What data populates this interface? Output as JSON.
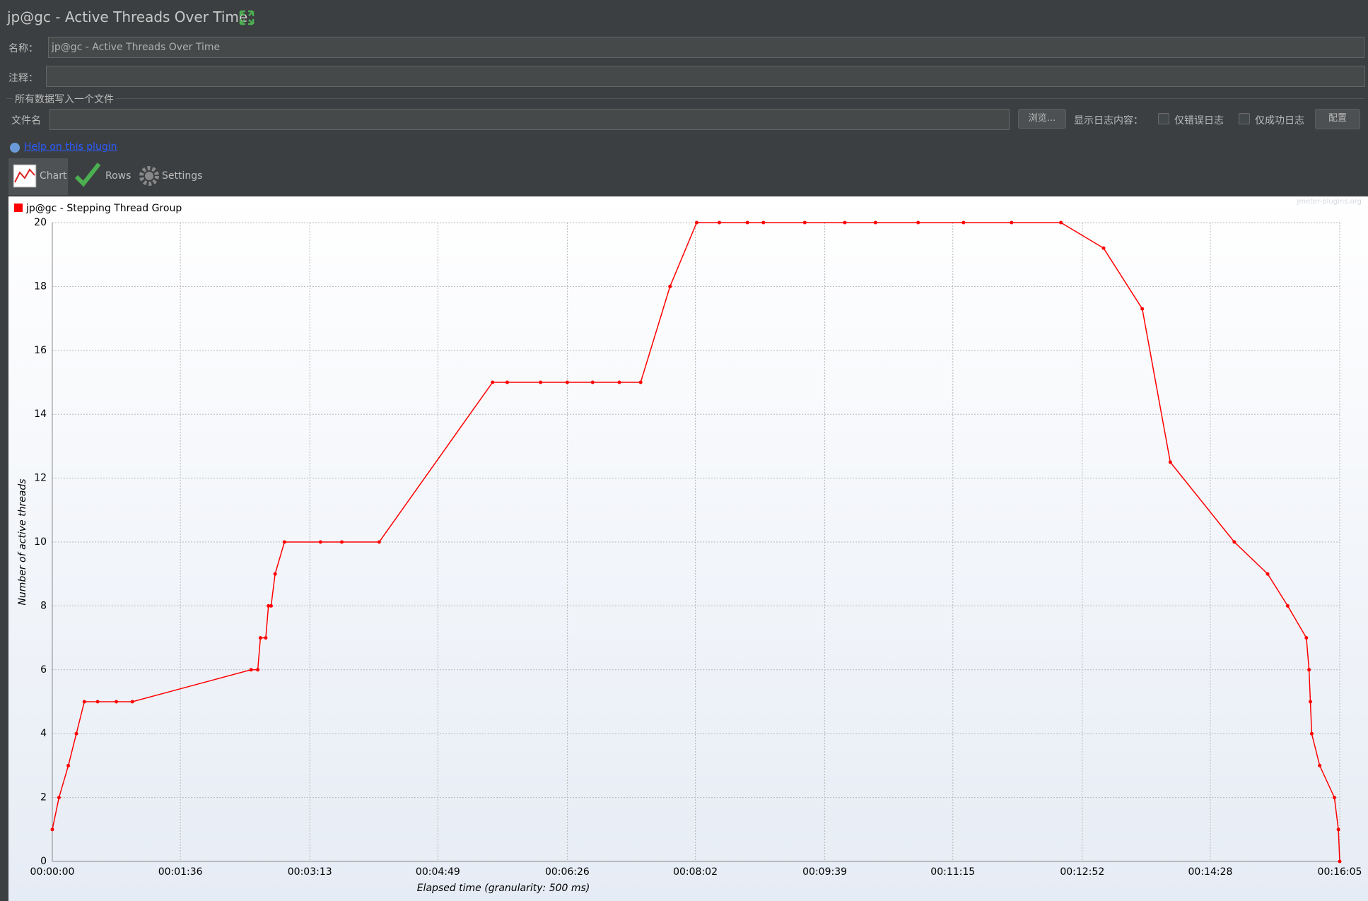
{
  "window": {
    "title": "jp@gc - Active Threads Over Time"
  },
  "form": {
    "name_label": "名称：",
    "name_value": "jp@gc - Active Threads Over Time",
    "comment_label": "注释：",
    "section": "所有数据写入一个文件",
    "file_label": "文件名",
    "browse": "浏览...",
    "log_label": "显示日志内容：",
    "errors_only": "仅错误日志",
    "success_only": "仅成功日志",
    "configure": "配置",
    "help": "Help on this plugin"
  },
  "tabs": [
    "Chart",
    "Rows",
    "Settings"
  ],
  "watermark": "jmeter-plugins.org",
  "chart_data": {
    "type": "line",
    "x_label": "Elapsed time (granularity: 500 ms)",
    "y_label": "Number of active threads",
    "x": [
      0,
      5,
      12,
      18,
      24,
      34,
      48,
      60,
      149,
      154,
      156,
      160,
      162,
      164,
      167,
      174,
      201,
      217,
      245,
      330,
      341,
      366,
      386,
      405,
      425,
      441,
      463,
      483,
      500,
      521,
      533,
      564,
      594,
      617,
      649,
      683,
      719,
      756,
      788,
      817,
      838,
      886,
      911,
      926,
      940,
      942,
      943,
      944,
      950,
      961,
      964,
      965
    ],
    "series": [
      {
        "name": "jp@gc - Stepping Thread Group",
        "color": "#ff0000",
        "values": [
          1,
          2,
          3,
          4,
          5,
          5,
          5,
          5,
          6,
          6,
          7,
          7,
          8,
          8,
          9,
          10,
          10,
          10,
          10,
          15,
          15,
          15,
          15,
          15,
          15,
          15,
          18,
          20,
          20,
          20,
          20,
          20,
          20,
          20,
          20,
          20,
          20,
          20,
          19.2,
          17.3,
          12.5,
          10,
          9,
          8,
          7,
          6,
          5,
          4,
          3,
          2,
          1,
          0
        ]
      }
    ],
    "xlim": [
      0,
      965
    ],
    "xticks": [
      {
        "value": 0,
        "label": "00:00:00"
      },
      {
        "value": 96,
        "label": "00:01:36"
      },
      {
        "value": 193,
        "label": "00:03:13"
      },
      {
        "value": 289,
        "label": "00:04:49"
      },
      {
        "value": 386,
        "label": "00:06:26"
      },
      {
        "value": 482,
        "label": "00:08:02"
      },
      {
        "value": 579,
        "label": "00:09:39"
      },
      {
        "value": 675,
        "label": "00:11:15"
      },
      {
        "value": 772,
        "label": "00:12:52"
      },
      {
        "value": 868,
        "label": "00:14:28"
      },
      {
        "value": 965,
        "label": "00:16:05"
      }
    ],
    "ylim": [
      0,
      20
    ],
    "yticks": [
      0,
      2,
      4,
      6,
      8,
      10,
      12,
      14,
      16,
      18,
      20
    ],
    "grid": true
  }
}
